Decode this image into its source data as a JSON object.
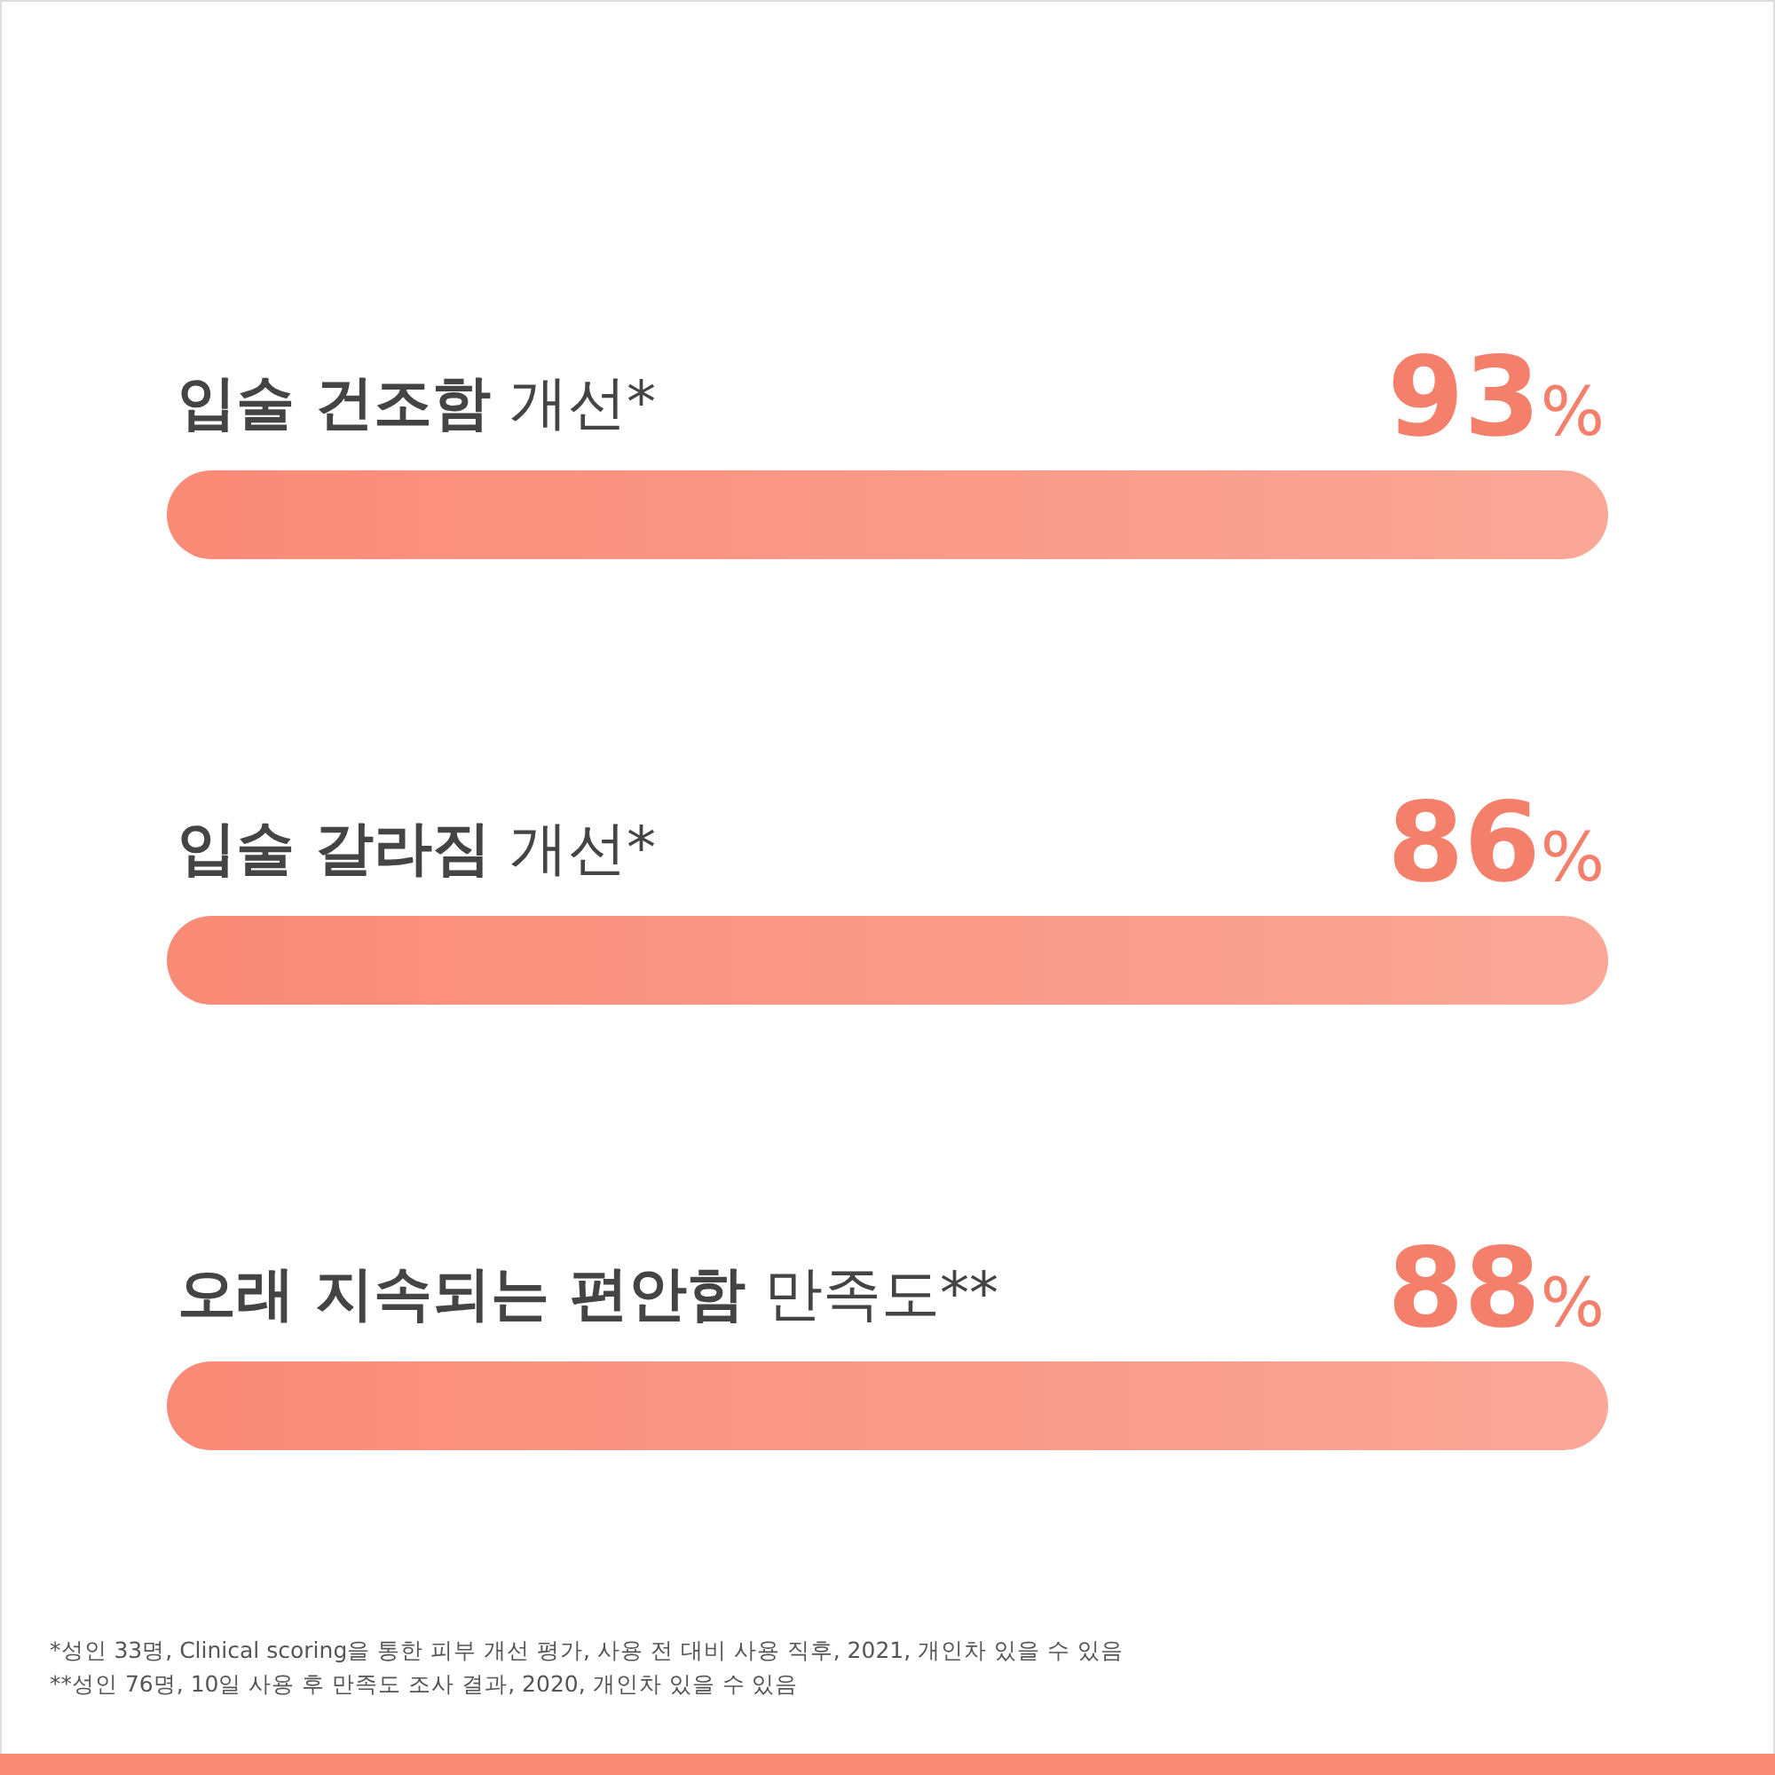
{
  "chart_data": {
    "type": "other",
    "categories": [
      "입술 건조함 개선*",
      "입술 갈라짐 개선*",
      "오래 지속되는 편안함 만족도**"
    ],
    "values": [
      93,
      86,
      88
    ],
    "value_labels": [
      "93%",
      "86%",
      "88%"
    ],
    "colors": [
      "#f98a76",
      "#f98a76",
      "#f98a76"
    ],
    "annotations": [
      "*성인 33명, Clinical scoring을 통한 피부 개선 평가, 사용 전 대비 사용 직후, 2021, 개인차 있을 수 있음",
      "**성인 76명, 10일 사용 후 만족도 조사 결과, 2020, 개인차 있을 수 있음"
    ]
  }
}
